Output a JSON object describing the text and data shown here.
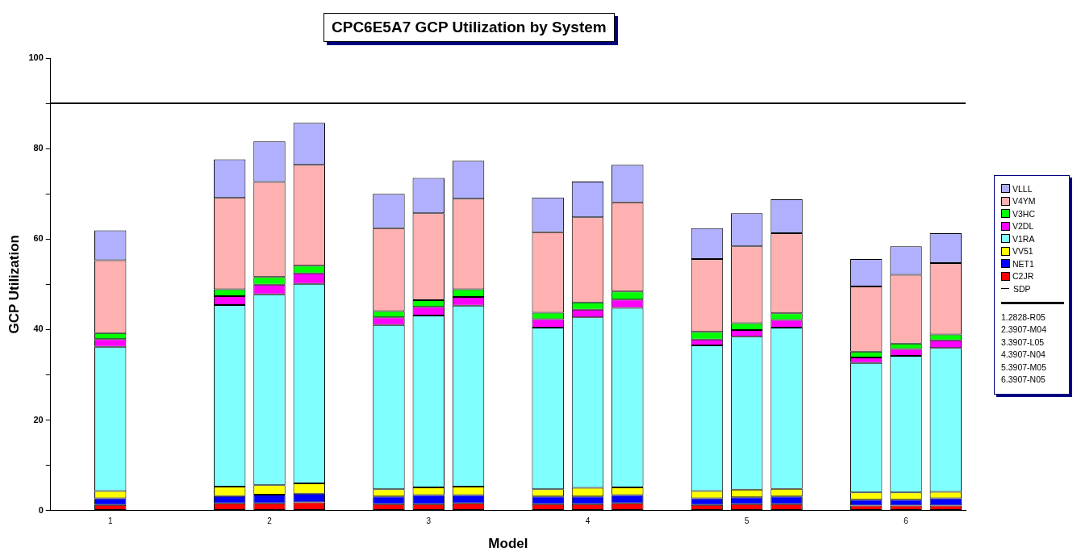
{
  "chart_data": {
    "type": "bar",
    "title": "CPC6E5A7 GCP Utilization by System",
    "xlabel": "Model",
    "ylabel": "GCP Utilization",
    "categories": [
      null,
      "1",
      null,
      null,
      null,
      "2",
      null,
      null,
      null,
      "3",
      null,
      null,
      null,
      "4",
      null,
      null,
      null,
      "5",
      null,
      null,
      null,
      "6",
      null
    ],
    "stacked": true,
    "legend": "right",
    "grid": false,
    "ylim": [
      0,
      100
    ],
    "yticks": [
      0,
      {
        "value": 10,
        "label": null
      },
      20,
      {
        "value": 30,
        "label": null
      },
      40,
      {
        "value": 50,
        "label": null
      },
      60,
      {
        "value": 70,
        "label": null
      },
      80,
      {
        "value": 90,
        "label": null
      },
      100
    ],
    "series": [
      {
        "name": "C2JR",
        "color": "#ff0000",
        "values": [
          null,
          1.2,
          null,
          null,
          1.6,
          1.6,
          1.8,
          null,
          1.4,
          1.4,
          1.6,
          null,
          1.4,
          1.4,
          1.6,
          null,
          1.2,
          1.4,
          1.4,
          null,
          1.1,
          1.1,
          1.1
        ]
      },
      {
        "name": "NET1",
        "color": "#0000ff",
        "values": [
          null,
          1.5,
          null,
          null,
          1.6,
          1.9,
          1.9,
          null,
          1.7,
          2.0,
          1.8,
          null,
          1.7,
          1.7,
          1.8,
          null,
          1.5,
          1.5,
          1.7,
          null,
          1.3,
          1.3,
          1.6
        ]
      },
      {
        "name": "VV51",
        "color": "#ffff00",
        "values": [
          null,
          1.6,
          null,
          null,
          2.1,
          2.1,
          2.3,
          null,
          1.6,
          1.7,
          1.9,
          null,
          1.6,
          1.9,
          1.7,
          null,
          1.6,
          1.7,
          1.7,
          null,
          1.6,
          1.6,
          1.4
        ]
      },
      {
        "name": "V1RA",
        "color": "#80ffff",
        "values": [
          null,
          31.9,
          null,
          null,
          40.1,
          42.2,
          44.1,
          null,
          36.3,
          38.0,
          40.0,
          null,
          35.7,
          37.7,
          39.7,
          null,
          32.2,
          33.8,
          35.6,
          null,
          28.6,
          30.2,
          31.8
        ]
      },
      {
        "name": "V2DL",
        "color": "#ff00ff",
        "values": [
          null,
          1.7,
          null,
          null,
          2.0,
          2.1,
          2.3,
          null,
          1.7,
          1.9,
          1.9,
          null,
          1.9,
          1.7,
          1.8,
          null,
          1.3,
          1.5,
          1.7,
          null,
          1.2,
          1.5,
          1.7
        ]
      },
      {
        "name": "V3HC",
        "color": "#00ff00",
        "values": [
          null,
          1.3,
          null,
          null,
          1.5,
          1.7,
          1.7,
          null,
          1.4,
          1.5,
          1.7,
          null,
          1.4,
          1.6,
          1.8,
          null,
          1.7,
          1.5,
          1.5,
          null,
          1.3,
          1.2,
          1.3
        ]
      },
      {
        "name": "V4YM",
        "color": "#ffb0b0",
        "values": [
          null,
          16.1,
          null,
          null,
          20.2,
          21.0,
          22.3,
          null,
          18.3,
          19.2,
          20.0,
          null,
          17.8,
          18.8,
          19.7,
          null,
          16.1,
          17.0,
          17.7,
          null,
          14.4,
          15.2,
          15.8
        ]
      },
      {
        "name": "VLLL",
        "color": "#b0b0ff",
        "values": [
          null,
          6.6,
          null,
          null,
          8.5,
          9.0,
          9.3,
          null,
          7.6,
          7.8,
          8.4,
          null,
          7.7,
          7.9,
          8.3,
          null,
          6.8,
          7.3,
          7.5,
          null,
          6.1,
          6.3,
          6.6
        ]
      }
    ],
    "ref_lines": [
      {
        "axis": "y",
        "value": 90,
        "label": "SDP",
        "color": "#000000"
      }
    ],
    "annotations": [
      "1.2828-R05",
      "2.3907-M04",
      "3.3907-L05",
      "4.3907-N04",
      "5.3907-M05",
      "6.3907-N05"
    ]
  }
}
